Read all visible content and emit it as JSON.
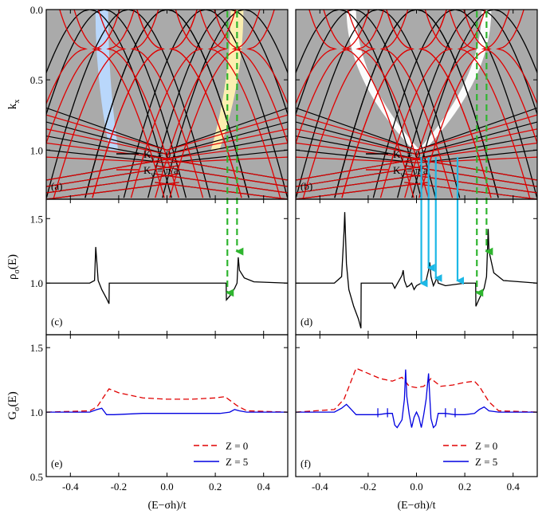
{
  "chart_data": [
    {
      "id": "a",
      "type": "line",
      "panel_label": "(a)",
      "ylabel": "k",
      "ylabel_sub": "x",
      "ylim": [
        1.35,
        0.0
      ],
      "yticks": [
        "0.0",
        "0.5",
        "1.0"
      ],
      "yticks_values": [
        0.0,
        0.5,
        1.0
      ],
      "background": "#aaaaaa",
      "legend": [
        {
          "name": "K",
          "sub": "y",
          "suffix": " = 0",
          "color": "#000000"
        },
        {
          "name": "K",
          "sub": "y",
          "suffix": " = π/a",
          "color": "#e00000"
        }
      ],
      "highlight_bands": [
        {
          "color": "#b9d9ff",
          "x_top": -0.27,
          "x_bottom": -0.22
        },
        {
          "color": "#fff2b0",
          "x_top": 0.29,
          "x_bottom": 0.2
        }
      ],
      "series": [
        {
          "color": "#000000",
          "k0": 0.0,
          "kmin": 0.0,
          "bands": [
            0.0,
            0.16,
            0.26,
            0.32
          ]
        },
        {
          "color": "#e00000",
          "k0": 0.28,
          "kmin": 0.28,
          "bands": [
            0.0,
            0.16,
            0.26,
            0.32
          ]
        }
      ],
      "arrows": [
        {
          "x": 0.25,
          "color": "#2fb52f"
        },
        {
          "x": 0.29,
          "color": "#2fb52f"
        }
      ]
    },
    {
      "id": "b",
      "type": "line",
      "panel_label": "(b)",
      "ylim": [
        1.35,
        0.0
      ],
      "background": "#aaaaaa",
      "legend": [
        {
          "name": "K",
          "sub": "y",
          "suffix": " = 0",
          "color": "#000000"
        },
        {
          "name": "K",
          "sub": "y",
          "suffix": " = π/a",
          "color": "#e00000"
        }
      ],
      "highlight_bands": [
        {
          "color": "#ffffff",
          "x_top": -0.27,
          "x_bottom": 0.0
        },
        {
          "color": "#ffffff",
          "x_top": 0.29,
          "x_bottom": 0.02
        }
      ],
      "series": [
        {
          "color": "#000000",
          "k0": 0.0,
          "bands": [
            0.0,
            0.16,
            0.26,
            0.32
          ]
        },
        {
          "color": "#e00000",
          "k0": 0.28,
          "bands": [
            0.0,
            0.16,
            0.26,
            0.32
          ]
        }
      ],
      "arrows": [
        {
          "x": 0.25,
          "color": "#2fb52f"
        },
        {
          "x": 0.29,
          "color": "#2fb52f"
        }
      ],
      "cyan_arrows": [
        0.02,
        0.05,
        0.08,
        0.17
      ]
    },
    {
      "id": "c",
      "type": "line",
      "panel_label": "(c)",
      "ylabel": "ρ",
      "ylabel_sub": "σ",
      "ylabel_suffix": "(E)",
      "ylim": [
        0.6,
        1.65
      ],
      "yticks": [
        "1.0",
        "1.5"
      ],
      "yticks_values": [
        1.0,
        1.5
      ],
      "series": [
        {
          "name": "dos",
          "color": "#000000",
          "x": [
            -0.5,
            -0.32,
            -0.3,
            -0.295,
            -0.29,
            -0.285,
            -0.27,
            -0.25,
            -0.24,
            -0.239,
            -0.22,
            0.0,
            0.2,
            0.245,
            0.246,
            0.26,
            0.28,
            0.29,
            0.295,
            0.3,
            0.32,
            0.36,
            0.5
          ],
          "y": [
            1.0,
            1.0,
            1.02,
            1.28,
            1.15,
            1.02,
            0.95,
            0.88,
            0.84,
            1.0,
            1.0,
            1.0,
            1.0,
            1.0,
            0.87,
            0.9,
            0.96,
            1.0,
            1.2,
            1.1,
            1.04,
            1.01,
            1.0
          ]
        }
      ]
    },
    {
      "id": "d",
      "type": "line",
      "panel_label": "(d)",
      "ylim": [
        0.6,
        1.65
      ],
      "series": [
        {
          "name": "dos",
          "color": "#000000",
          "x": [
            -0.5,
            -0.34,
            -0.31,
            -0.3,
            -0.297,
            -0.29,
            -0.28,
            -0.26,
            -0.24,
            -0.23,
            -0.229,
            -0.1,
            -0.09,
            -0.06,
            -0.055,
            -0.05,
            -0.04,
            -0.03,
            -0.02,
            -0.01,
            0.0,
            0.02,
            0.04,
            0.05,
            0.055,
            0.06,
            0.07,
            0.08,
            0.085,
            0.09,
            0.12,
            0.2,
            0.245,
            0.246,
            0.26,
            0.28,
            0.29,
            0.297,
            0.3,
            0.32,
            0.36,
            0.5
          ],
          "y": [
            1.0,
            1.0,
            1.05,
            1.4,
            1.55,
            1.15,
            0.95,
            0.82,
            0.72,
            0.65,
            1.0,
            1.0,
            0.96,
            1.06,
            1.1,
            1.02,
            0.97,
            0.98,
            1.0,
            0.95,
            0.98,
            1.0,
            1.02,
            1.1,
            1.16,
            1.05,
            0.98,
            1.02,
            1.05,
            1.0,
            0.98,
            1.0,
            1.0,
            0.82,
            0.88,
            0.96,
            1.05,
            1.42,
            1.25,
            1.08,
            1.02,
            1.0
          ]
        }
      ],
      "arrows": [
        {
          "x": 0.25,
          "color": "#2fb52f"
        },
        {
          "x": 0.29,
          "color": "#2fb52f"
        }
      ],
      "cyan_arrows": [
        0.02,
        0.05,
        0.08,
        0.17
      ]
    },
    {
      "id": "e",
      "type": "line",
      "panel_label": "(e)",
      "ylabel": "G",
      "ylabel_sub": "σ",
      "ylabel_suffix": "(E)",
      "ylim": [
        0.5,
        1.6
      ],
      "yticks": [
        "0.5",
        "1.0",
        "1.5"
      ],
      "yticks_values": [
        0.5,
        1.0,
        1.5
      ],
      "legend": [
        {
          "name": "Z = 0",
          "color": "#e00000",
          "dash": true
        },
        {
          "name": "Z = 5",
          "color": "#0000e0",
          "dash": false
        }
      ],
      "series": [
        {
          "name": "Z = 0",
          "color": "#e00000",
          "dash": true,
          "x": [
            -0.5,
            -0.32,
            -0.29,
            -0.24,
            -0.2,
            -0.1,
            0.0,
            0.1,
            0.2,
            0.24,
            0.29,
            0.33,
            0.5
          ],
          "y": [
            1.0,
            1.01,
            1.04,
            1.18,
            1.15,
            1.11,
            1.1,
            1.1,
            1.11,
            1.12,
            1.05,
            1.01,
            1.0
          ]
        },
        {
          "name": "Z = 5",
          "color": "#0000e0",
          "dash": false,
          "x": [
            -0.5,
            -0.32,
            -0.29,
            -0.27,
            -0.25,
            -0.22,
            -0.1,
            0.0,
            0.1,
            0.22,
            0.26,
            0.28,
            0.3,
            0.33,
            0.5
          ],
          "y": [
            1.0,
            1.0,
            1.02,
            1.03,
            0.98,
            0.98,
            0.99,
            0.99,
            0.99,
            0.99,
            1.0,
            1.02,
            1.01,
            1.0,
            1.0
          ]
        }
      ]
    },
    {
      "id": "f",
      "type": "line",
      "panel_label": "(f)",
      "ylim": [
        0.5,
        1.6
      ],
      "legend": [
        {
          "name": "Z = 0",
          "color": "#e00000",
          "dash": true
        },
        {
          "name": "Z = 5",
          "color": "#0000e0",
          "dash": false
        }
      ],
      "series": [
        {
          "name": "Z = 0",
          "color": "#e00000",
          "dash": true,
          "x": [
            -0.5,
            -0.34,
            -0.3,
            -0.25,
            -0.2,
            -0.15,
            -0.1,
            -0.06,
            -0.03,
            0.0,
            0.03,
            0.06,
            0.1,
            0.15,
            0.2,
            0.24,
            0.26,
            0.3,
            0.34,
            0.5
          ],
          "y": [
            1.0,
            1.02,
            1.1,
            1.34,
            1.3,
            1.26,
            1.24,
            1.27,
            1.2,
            1.19,
            1.2,
            1.26,
            1.2,
            1.21,
            1.23,
            1.24,
            1.2,
            1.08,
            1.01,
            1.0
          ]
        },
        {
          "name": "Z = 5",
          "color": "#0000e0",
          "dash": false,
          "x": [
            -0.5,
            -0.34,
            -0.31,
            -0.29,
            -0.27,
            -0.25,
            -0.2,
            -0.16,
            -0.12,
            -0.1,
            -0.09,
            -0.08,
            -0.06,
            -0.05,
            -0.045,
            -0.04,
            -0.03,
            -0.02,
            -0.01,
            0.0,
            0.01,
            0.02,
            0.03,
            0.04,
            0.05,
            0.055,
            0.06,
            0.07,
            0.08,
            0.09,
            0.1,
            0.12,
            0.16,
            0.2,
            0.24,
            0.26,
            0.28,
            0.3,
            0.34,
            0.5
          ],
          "y": [
            1.0,
            1.0,
            1.03,
            1.06,
            1.02,
            0.98,
            0.98,
            0.98,
            0.99,
            0.99,
            0.9,
            0.88,
            0.94,
            1.1,
            1.33,
            1.12,
            0.98,
            0.88,
            0.96,
            1.0,
            0.96,
            0.88,
            0.98,
            1.1,
            1.3,
            1.12,
            0.95,
            0.88,
            0.9,
            0.99,
            0.99,
            0.99,
            0.98,
            0.98,
            0.99,
            1.02,
            1.04,
            1.01,
            1.0,
            1.0
          ]
        }
      ]
    }
  ],
  "xaxis": {
    "label": "(E−σh)/t",
    "xlim": [
      -0.5,
      0.5
    ],
    "ticks": [
      "-0.4",
      "-0.2",
      "0.0",
      "0.2",
      "0.4"
    ],
    "tick_values": [
      -0.4,
      -0.2,
      0.0,
      0.2,
      0.4
    ]
  }
}
